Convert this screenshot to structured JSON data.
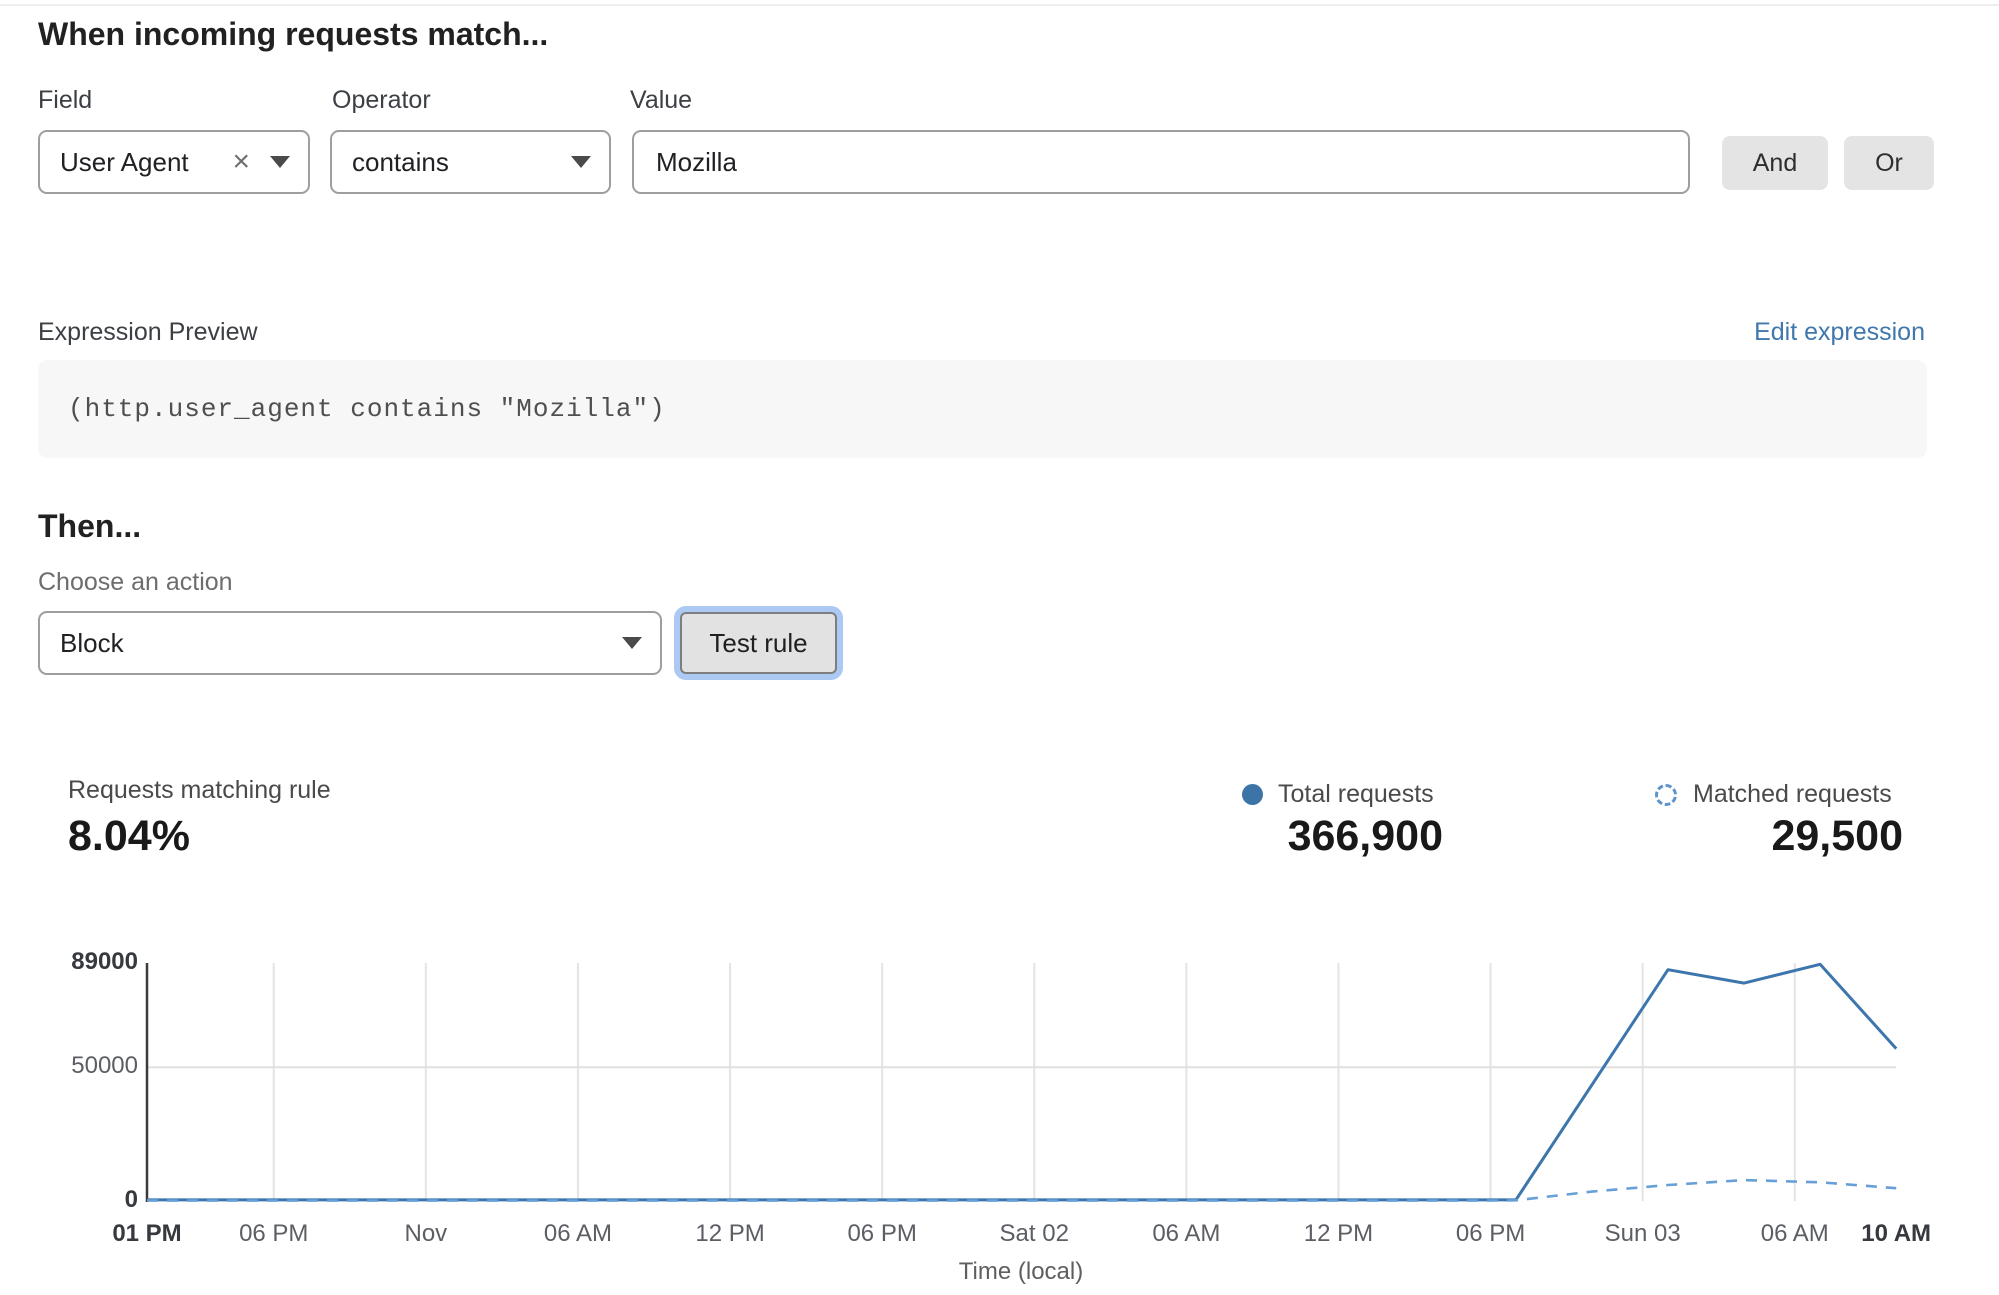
{
  "page": {
    "heading": "When incoming requests match..."
  },
  "rule_builder": {
    "field_label": "Field",
    "operator_label": "Operator",
    "value_label": "Value",
    "field_value": "User Agent",
    "operator_value": "contains",
    "value_text": "Mozilla",
    "clear_icon_glyph": "×",
    "and_button": "And",
    "or_button": "Or"
  },
  "expression": {
    "label": "Expression Preview",
    "edit_link": "Edit expression",
    "code": "(http.user_agent contains \"Mozilla\")"
  },
  "action_section": {
    "heading": "Then...",
    "choose_label": "Choose an action",
    "action_value": "Block",
    "test_button": "Test rule"
  },
  "stats": {
    "matching_label": "Requests matching rule",
    "matching_value": "8.04%",
    "total_label": "Total requests",
    "total_value": "366,900",
    "matched_label": "Matched requests",
    "matched_value": "29,500"
  },
  "colors": {
    "line_solid": "#3c76ad",
    "line_dashed": "#66a0d6",
    "link_blue": "#4077ad",
    "focus_ring": "#abc9f3",
    "gridline": "#e4e4e4",
    "axis_line": "#3a3a3a"
  },
  "chart_data": {
    "type": "line",
    "title": "",
    "xlabel": "Time (local)",
    "ylabel": "",
    "ylim": [
      0,
      89000
    ],
    "x_unit": "hours from window start (Thu 1 PM local)",
    "grid": "vertical gridline at each x tick; horizontal gridline at 50000",
    "legend_position": "top-right above chart",
    "yticks": [
      {
        "value": 0,
        "label": "0",
        "bold": true
      },
      {
        "value": 50000,
        "label": "50000",
        "bold": false
      },
      {
        "value": 89000,
        "label": "89000",
        "bold": true
      }
    ],
    "xticks": [
      {
        "t": 0,
        "label": "01 PM",
        "bold": true
      },
      {
        "t": 5,
        "label": "06 PM",
        "bold": false
      },
      {
        "t": 11,
        "label": "Nov",
        "bold": false
      },
      {
        "t": 17,
        "label": "06 AM",
        "bold": false
      },
      {
        "t": 23,
        "label": "12 PM",
        "bold": false
      },
      {
        "t": 29,
        "label": "06 PM",
        "bold": false
      },
      {
        "t": 35,
        "label": "Sat 02",
        "bold": false
      },
      {
        "t": 41,
        "label": "06 AM",
        "bold": false
      },
      {
        "t": 47,
        "label": "12 PM",
        "bold": false
      },
      {
        "t": 53,
        "label": "06 PM",
        "bold": false
      },
      {
        "t": 59,
        "label": "Sun 03",
        "bold": false
      },
      {
        "t": 65,
        "label": "06 AM",
        "bold": false
      },
      {
        "t": 69,
        "label": "10 AM",
        "bold": true
      }
    ],
    "series": [
      {
        "name": "Total requests",
        "style": "solid",
        "color": "#3c76ad",
        "points": [
          [
            0,
            400
          ],
          [
            5,
            400
          ],
          [
            11,
            400
          ],
          [
            17,
            400
          ],
          [
            23,
            400
          ],
          [
            29,
            400
          ],
          [
            35,
            400
          ],
          [
            41,
            400
          ],
          [
            47,
            400
          ],
          [
            53,
            400
          ],
          [
            54,
            400
          ],
          [
            60,
            86500
          ],
          [
            63,
            81500
          ],
          [
            66,
            88500
          ],
          [
            69,
            57000
          ]
        ]
      },
      {
        "name": "Matched requests",
        "style": "dashed",
        "color": "#66a0d6",
        "points": [
          [
            0,
            150
          ],
          [
            5,
            150
          ],
          [
            11,
            150
          ],
          [
            17,
            150
          ],
          [
            23,
            150
          ],
          [
            29,
            150
          ],
          [
            35,
            150
          ],
          [
            41,
            150
          ],
          [
            47,
            150
          ],
          [
            53,
            150
          ],
          [
            54,
            250
          ],
          [
            57,
            3500
          ],
          [
            60,
            6000
          ],
          [
            63,
            7800
          ],
          [
            66,
            7000
          ],
          [
            69,
            4800
          ]
        ]
      }
    ]
  }
}
